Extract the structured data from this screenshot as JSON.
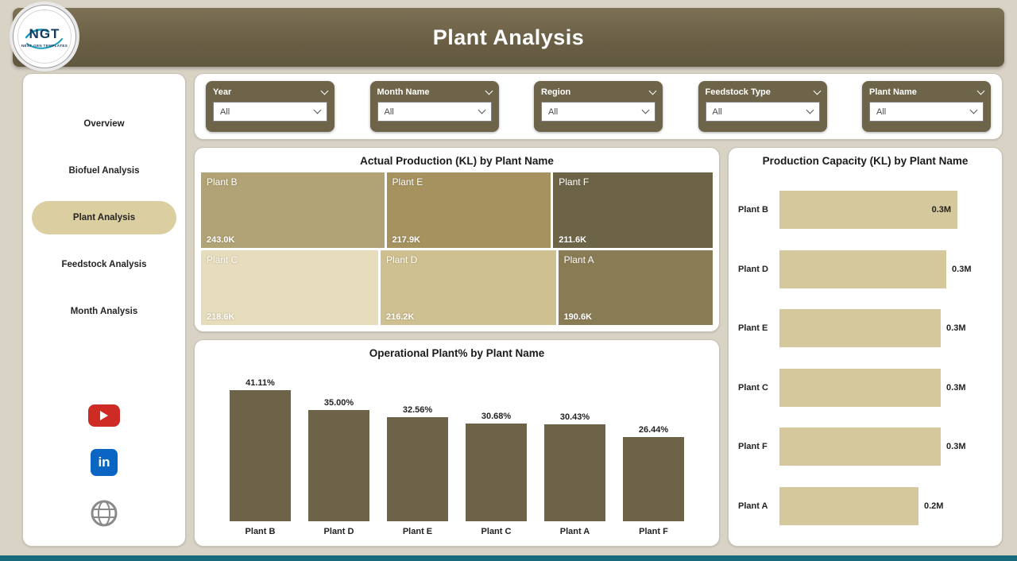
{
  "header": {
    "title": "Plant Analysis"
  },
  "logo": {
    "name": "NGT",
    "caption": "NEXT GEN TEMPLATES"
  },
  "filters": {
    "items": [
      {
        "label": "Year",
        "value": "All"
      },
      {
        "label": "Month Name",
        "value": "All"
      },
      {
        "label": "Region",
        "value": "All"
      },
      {
        "label": "Feedstock Type",
        "value": "All"
      },
      {
        "label": "Plant Name",
        "value": "All"
      }
    ]
  },
  "sidebar": {
    "items": [
      {
        "label": "Overview",
        "active": false
      },
      {
        "label": "Biofuel Analysis",
        "active": false
      },
      {
        "label": "Plant Analysis",
        "active": true
      },
      {
        "label": "Feedstock Analysis",
        "active": false
      },
      {
        "label": "Month Analysis",
        "active": false
      }
    ],
    "social": [
      {
        "name": "youtube-icon"
      },
      {
        "name": "linkedin-icon"
      },
      {
        "name": "website-globe-icon"
      }
    ]
  },
  "chart_data": [
    {
      "type": "heatmap",
      "subtype": "treemap",
      "title": "Actual Production (KL) by Plant Name",
      "value_unit": "KL (thousands)",
      "items": [
        {
          "name": "Plant B",
          "value": 243.0,
          "label": "243.0K",
          "color": "#b1a375",
          "row": 0
        },
        {
          "name": "Plant E",
          "value": 217.9,
          "label": "217.9K",
          "color": "#a5925f",
          "row": 0
        },
        {
          "name": "Plant F",
          "value": 211.6,
          "label": "211.6K",
          "color": "#6d6448",
          "row": 0
        },
        {
          "name": "Plant C",
          "value": 218.6,
          "label": "218.6K",
          "color": "#e7ddbd",
          "row": 1
        },
        {
          "name": "Plant D",
          "value": 216.2,
          "label": "216.2K",
          "color": "#cfc091",
          "row": 1
        },
        {
          "name": "Plant A",
          "value": 190.6,
          "label": "190.6K",
          "color": "#897c55",
          "row": 1
        }
      ]
    },
    {
      "type": "bar",
      "title": "Operational Plant% by Plant Name",
      "categories": [
        "Plant B",
        "Plant D",
        "Plant E",
        "Plant C",
        "Plant A",
        "Plant F"
      ],
      "values": [
        41.11,
        35.0,
        32.56,
        30.68,
        30.43,
        26.44
      ],
      "labels": [
        "41.11%",
        "35.00%",
        "32.56%",
        "30.68%",
        "30.43%",
        "26.44%"
      ],
      "bar_color": "#6c6349",
      "xlabel": "",
      "ylabel": "",
      "ylim": [
        0,
        45
      ],
      "grid": false,
      "legend": "none"
    },
    {
      "type": "bar",
      "subtype": "horizontal",
      "title": "Production Capacity (KL) by Plant Name",
      "categories": [
        "Plant B",
        "Plant D",
        "Plant E",
        "Plant C",
        "Plant F",
        "Plant A"
      ],
      "values": [
        0.32,
        0.3,
        0.29,
        0.29,
        0.29,
        0.25
      ],
      "labels": [
        "0.3M",
        "0.3M",
        "0.3M",
        "0.3M",
        "0.3M",
        "0.2M"
      ],
      "label_inside": [
        true,
        false,
        false,
        false,
        false,
        false
      ],
      "bar_color": "#d6c89d",
      "xlabel": "",
      "ylabel": "",
      "xlim": [
        0,
        0.35
      ],
      "grid": false,
      "legend": "none"
    }
  ]
}
